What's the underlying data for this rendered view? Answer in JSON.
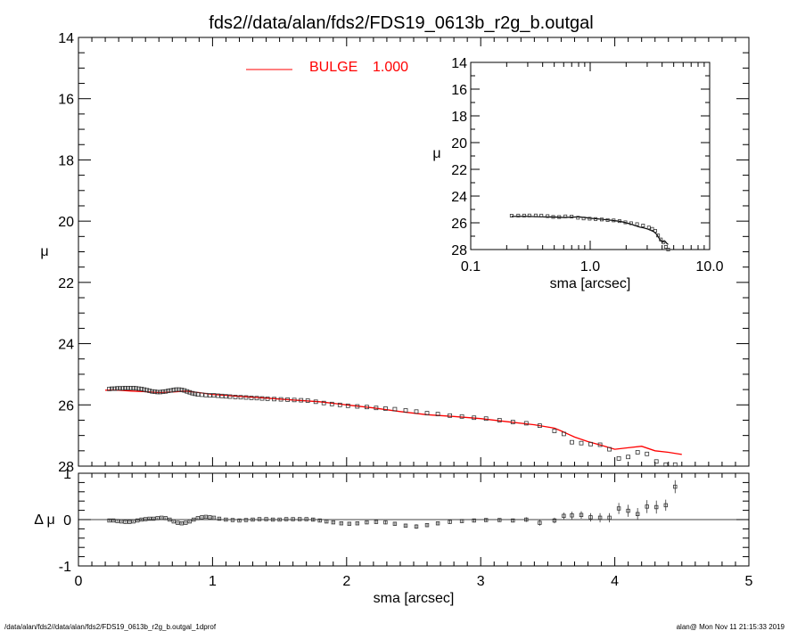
{
  "chart_data": [
    {
      "type": "scatter",
      "panel": "main",
      "title": "fds2//data/alan/fds2/FDS19_0613b_r2g_b.outgal",
      "xlabel": "",
      "ylabel": "μ",
      "xlim": [
        0,
        5
      ],
      "ylim": [
        28,
        14
      ],
      "y_inverted": true,
      "ytick_labels": [
        "14",
        "16",
        "18",
        "20",
        "22",
        "24",
        "26",
        "28"
      ],
      "legend": {
        "label": "BULGE",
        "value": "1.000",
        "color": "#ff0000",
        "placement": "top-center"
      },
      "series": [
        {
          "name": "data",
          "marker": "open-square",
          "x": [
            0.23,
            0.25,
            0.27,
            0.29,
            0.31,
            0.33,
            0.35,
            0.37,
            0.39,
            0.41,
            0.43,
            0.45,
            0.47,
            0.49,
            0.51,
            0.53,
            0.55,
            0.57,
            0.59,
            0.61,
            0.63,
            0.65,
            0.67,
            0.69,
            0.71,
            0.73,
            0.75,
            0.77,
            0.79,
            0.81,
            0.83,
            0.85,
            0.87,
            0.89,
            0.92,
            0.95,
            0.98,
            1.01,
            1.04,
            1.07,
            1.1,
            1.13,
            1.17,
            1.21,
            1.25,
            1.29,
            1.33,
            1.37,
            1.41,
            1.46,
            1.51,
            1.56,
            1.61,
            1.66,
            1.71,
            1.77,
            1.83,
            1.89,
            1.95,
            2.01,
            2.08,
            2.15,
            2.22,
            2.29,
            2.36,
            2.44,
            2.52,
            2.6,
            2.68,
            2.77,
            2.86,
            2.95,
            3.04,
            3.14,
            3.24,
            3.34,
            3.44,
            3.55,
            3.62,
            3.68,
            3.75,
            3.82,
            3.89,
            3.96,
            4.03,
            4.1,
            4.17,
            4.24,
            4.31,
            4.38,
            4.45
          ],
          "y": [
            25.48,
            25.47,
            25.47,
            25.46,
            25.46,
            25.46,
            25.45,
            25.45,
            25.45,
            25.45,
            25.46,
            25.47,
            25.48,
            25.5,
            25.52,
            25.54,
            25.56,
            25.57,
            25.58,
            25.58,
            25.57,
            25.56,
            25.54,
            25.53,
            25.51,
            25.5,
            25.5,
            25.51,
            25.53,
            25.56,
            25.59,
            25.62,
            25.64,
            25.66,
            25.67,
            25.68,
            25.69,
            25.69,
            25.7,
            25.71,
            25.72,
            25.73,
            25.74,
            25.75,
            25.76,
            25.77,
            25.78,
            25.79,
            25.8,
            25.81,
            25.82,
            25.83,
            25.84,
            25.85,
            25.86,
            25.9,
            25.94,
            25.97,
            26.0,
            26.03,
            26.05,
            26.07,
            26.1,
            26.12,
            26.14,
            26.18,
            26.22,
            26.27,
            26.3,
            26.35,
            26.38,
            26.42,
            26.45,
            26.5,
            26.56,
            26.6,
            26.68,
            26.85,
            26.95,
            27.22,
            27.25,
            27.28,
            27.3,
            27.45,
            27.75,
            27.7,
            27.55,
            27.6,
            27.85,
            27.95,
            27.95
          ]
        },
        {
          "name": "BULGE",
          "marker": "line",
          "color": "#ff0000",
          "x": [
            0.2,
            0.3,
            0.4,
            0.5,
            0.6,
            0.7,
            0.8,
            0.9,
            1.0,
            1.2,
            1.4,
            1.6,
            1.8,
            2.0,
            2.2,
            2.4,
            2.6,
            2.8,
            3.0,
            3.2,
            3.4,
            3.55,
            3.6,
            3.7,
            3.8,
            3.9,
            4.0,
            4.1,
            4.2,
            4.3,
            4.4,
            4.5
          ],
          "y": [
            25.52,
            25.52,
            25.55,
            25.57,
            25.6,
            25.58,
            25.55,
            25.6,
            25.66,
            25.72,
            25.78,
            25.84,
            25.9,
            26.0,
            26.1,
            26.22,
            26.32,
            26.38,
            26.45,
            26.55,
            26.65,
            26.76,
            26.85,
            27.05,
            27.2,
            27.32,
            27.45,
            27.4,
            27.35,
            27.5,
            27.55,
            27.62
          ]
        }
      ]
    },
    {
      "type": "scatter",
      "panel": "residual",
      "xlabel": "sma [arcsec]",
      "ylabel": "Δ μ",
      "xlim": [
        0,
        5
      ],
      "ylim": [
        -1,
        1
      ],
      "xtick_labels": [
        "0",
        "1",
        "2",
        "3",
        "4",
        "5"
      ],
      "ytick_labels": [
        "1",
        "0",
        "-1"
      ],
      "series": [
        {
          "name": "residual",
          "marker": "open-square-with-errorbar",
          "x": [
            0.23,
            0.26,
            0.29,
            0.32,
            0.35,
            0.38,
            0.41,
            0.44,
            0.47,
            0.5,
            0.53,
            0.56,
            0.59,
            0.62,
            0.65,
            0.68,
            0.71,
            0.74,
            0.77,
            0.8,
            0.83,
            0.86,
            0.89,
            0.92,
            0.95,
            0.98,
            1.01,
            1.05,
            1.1,
            1.15,
            1.2,
            1.25,
            1.3,
            1.35,
            1.4,
            1.45,
            1.5,
            1.55,
            1.6,
            1.65,
            1.7,
            1.75,
            1.8,
            1.85,
            1.9,
            1.96,
            2.02,
            2.08,
            2.15,
            2.22,
            2.29,
            2.36,
            2.44,
            2.52,
            2.6,
            2.68,
            2.77,
            2.86,
            2.95,
            3.04,
            3.14,
            3.24,
            3.34,
            3.44,
            3.55,
            3.62,
            3.68,
            3.75,
            3.82,
            3.89,
            3.96,
            4.03,
            4.1,
            4.17,
            4.24,
            4.31,
            4.38,
            4.45
          ],
          "y": [
            -0.02,
            -0.02,
            -0.03,
            -0.04,
            -0.05,
            -0.05,
            -0.04,
            -0.02,
            0.0,
            0.01,
            0.02,
            0.02,
            0.03,
            0.04,
            0.03,
            0.0,
            -0.04,
            -0.07,
            -0.08,
            -0.07,
            -0.04,
            0.0,
            0.03,
            0.05,
            0.06,
            0.05,
            0.04,
            0.02,
            0.0,
            -0.01,
            -0.02,
            -0.01,
            0.0,
            0.01,
            0.01,
            0.0,
            0.0,
            0.01,
            0.01,
            0.01,
            0.01,
            0.0,
            -0.02,
            -0.04,
            -0.06,
            -0.08,
            -0.09,
            -0.08,
            -0.06,
            -0.05,
            -0.06,
            -0.09,
            -0.13,
            -0.15,
            -0.12,
            -0.08,
            -0.05,
            -0.03,
            -0.02,
            -0.01,
            -0.01,
            -0.02,
            0.0,
            -0.07,
            -0.02,
            0.08,
            0.09,
            0.1,
            0.05,
            0.04,
            0.04,
            0.24,
            0.19,
            0.12,
            0.28,
            0.27,
            0.31,
            0.71
          ],
          "err": [
            0.02,
            0.02,
            0.02,
            0.02,
            0.02,
            0.02,
            0.02,
            0.02,
            0.02,
            0.02,
            0.02,
            0.02,
            0.02,
            0.02,
            0.02,
            0.02,
            0.02,
            0.02,
            0.02,
            0.02,
            0.02,
            0.02,
            0.02,
            0.02,
            0.02,
            0.02,
            0.02,
            0.02,
            0.02,
            0.02,
            0.02,
            0.02,
            0.02,
            0.02,
            0.02,
            0.02,
            0.02,
            0.02,
            0.02,
            0.02,
            0.02,
            0.03,
            0.03,
            0.03,
            0.03,
            0.03,
            0.03,
            0.03,
            0.03,
            0.04,
            0.04,
            0.04,
            0.04,
            0.05,
            0.04,
            0.04,
            0.04,
            0.04,
            0.04,
            0.04,
            0.04,
            0.04,
            0.05,
            0.06,
            0.06,
            0.07,
            0.08,
            0.08,
            0.09,
            0.1,
            0.1,
            0.12,
            0.13,
            0.13,
            0.14,
            0.14,
            0.12,
            0.14
          ]
        }
      ]
    },
    {
      "type": "scatter",
      "panel": "inset",
      "xlabel": "sma [arcsec]",
      "ylabel": "μ",
      "xscale": "log",
      "xlim": [
        0.1,
        10.0
      ],
      "ylim": [
        28,
        14
      ],
      "y_inverted": true,
      "xtick_labels": [
        "0.1",
        "1.0",
        "10.0"
      ],
      "ytick_labels": [
        "14",
        "16",
        "18",
        "20",
        "22",
        "24",
        "26",
        "28"
      ],
      "series": [
        {
          "name": "data",
          "marker": "open-square",
          "x": [
            0.22,
            0.25,
            0.28,
            0.31,
            0.35,
            0.39,
            0.44,
            0.49,
            0.55,
            0.62,
            0.7,
            0.79,
            0.88,
            0.99,
            1.11,
            1.25,
            1.4,
            1.57,
            1.76,
            1.97,
            2.2,
            2.47,
            2.77,
            3.1,
            3.3,
            3.5,
            3.7,
            3.9,
            4.1,
            4.3,
            4.5
          ],
          "y": [
            25.47,
            25.46,
            25.46,
            25.45,
            25.45,
            25.46,
            25.5,
            25.56,
            25.57,
            25.52,
            25.53,
            25.62,
            25.67,
            25.69,
            25.72,
            25.75,
            25.79,
            25.82,
            25.87,
            25.97,
            26.03,
            26.1,
            26.2,
            26.35,
            26.45,
            26.6,
            26.95,
            27.25,
            27.45,
            27.8,
            28.0
          ]
        },
        {
          "name": "BULGE",
          "marker": "line",
          "x": [
            0.22,
            0.3,
            0.4,
            0.5,
            0.6,
            0.7,
            0.8,
            0.9,
            1.0,
            1.2,
            1.4,
            1.6,
            1.8,
            2.0,
            2.2,
            2.4,
            2.6,
            2.8,
            3.0,
            3.2,
            3.4,
            3.6,
            3.8,
            4.0,
            4.2,
            4.4,
            4.5
          ],
          "y": [
            25.52,
            25.52,
            25.55,
            25.57,
            25.6,
            25.58,
            25.55,
            25.6,
            25.66,
            25.72,
            25.78,
            25.84,
            25.9,
            26.0,
            26.1,
            26.22,
            26.32,
            26.38,
            26.45,
            26.55,
            26.65,
            26.85,
            27.2,
            27.45,
            27.35,
            27.55,
            27.62
          ]
        }
      ]
    }
  ],
  "footer": {
    "left": "/data/alan/fds2//data/alan/fds2/FDS19_0613b_r2g_b.outgal_1dprof",
    "right": "alan@  Mon Nov 11 21:15:33 2019"
  }
}
